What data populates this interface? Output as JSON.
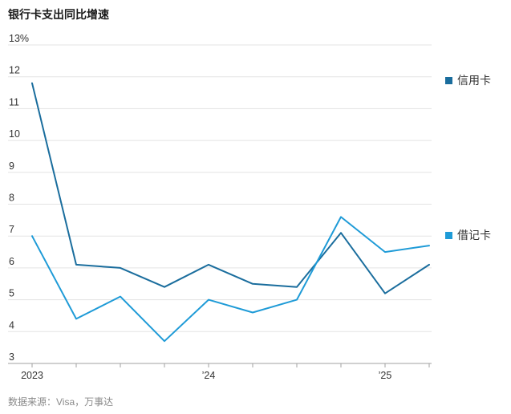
{
  "chart_data": {
    "type": "line",
    "title": "银行卡支出同比增速",
    "x": [
      "2023-Q1",
      "2023-Q2",
      "2023-Q3",
      "2023-Q4",
      "2024-Q1",
      "2024-Q2",
      "2024-Q3",
      "2024-Q4",
      "2025-Q1",
      "2025-Q2"
    ],
    "x_tick_labels": [
      {
        "x": "2023-Q1",
        "label": "2023"
      },
      {
        "x": "2024-Q1",
        "label": "’24"
      },
      {
        "x": "2025-Q1",
        "label": "’25"
      }
    ],
    "y_ticks": [
      3,
      4,
      5,
      6,
      7,
      8,
      9,
      10,
      11,
      12,
      13
    ],
    "y_tick_labels": [
      "3",
      "4",
      "5",
      "6",
      "7",
      "8",
      "9",
      "10",
      "11",
      "12",
      "13%"
    ],
    "ylim": [
      3,
      13
    ],
    "grid": true,
    "legend": "right",
    "series": [
      {
        "name": "信用卡",
        "color": "#1a6d9d",
        "values": [
          11.8,
          6.1,
          6.0,
          5.4,
          6.1,
          5.5,
          5.4,
          7.1,
          5.2,
          6.1
        ]
      },
      {
        "name": "借记卡",
        "color": "#1f9bd7",
        "values": [
          7.0,
          4.4,
          5.1,
          3.7,
          5.0,
          4.6,
          5.0,
          7.6,
          6.5,
          6.7
        ]
      }
    ]
  },
  "source": "数据来源：Visa，万事达"
}
